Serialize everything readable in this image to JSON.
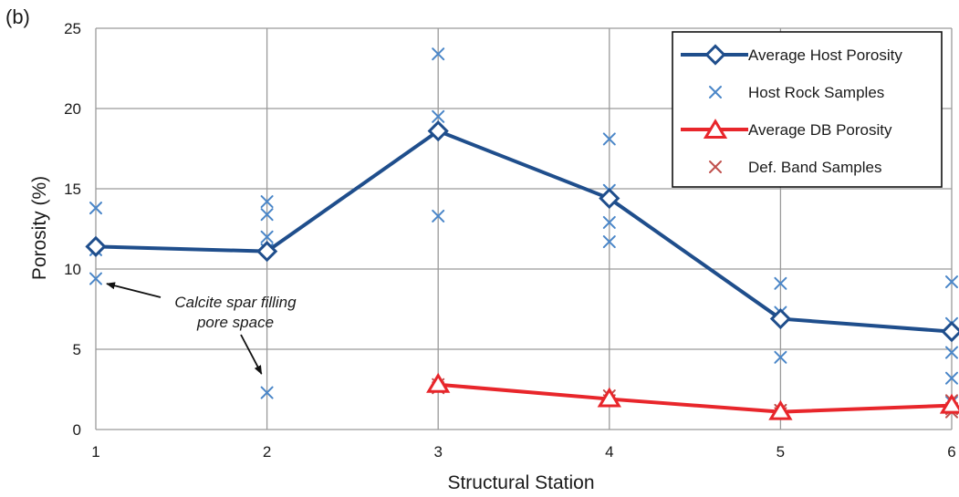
{
  "chart_data": {
    "type": "line",
    "panel_label": "(b)",
    "xlabel": "Structural Station",
    "ylabel": "Porosity (%)",
    "xlim": [
      1,
      6
    ],
    "ylim": [
      0,
      25
    ],
    "x_ticks": [
      1,
      2,
      3,
      4,
      5,
      6
    ],
    "y_ticks": [
      0,
      5,
      10,
      15,
      20,
      25
    ],
    "grid": true,
    "legend_position": "top-right",
    "series": [
      {
        "name": "Average Host Porosity",
        "kind": "line",
        "marker": "diamond",
        "color": "#1f4e8c",
        "x": [
          1,
          2,
          3,
          4,
          5,
          6
        ],
        "y": [
          11.4,
          11.1,
          18.6,
          14.4,
          6.9,
          6.1
        ]
      },
      {
        "name": "Host Rock Samples",
        "kind": "scatter",
        "marker": "x",
        "color": "#4a86c8",
        "points": [
          [
            1,
            13.8
          ],
          [
            1,
            11.2
          ],
          [
            1,
            9.4
          ],
          [
            2,
            14.2
          ],
          [
            2,
            13.4
          ],
          [
            2,
            12.0
          ],
          [
            2,
            11.2
          ],
          [
            2,
            2.3
          ],
          [
            3,
            23.4
          ],
          [
            3,
            19.5
          ],
          [
            3,
            13.3
          ],
          [
            4,
            18.1
          ],
          [
            4,
            14.9
          ],
          [
            4,
            12.9
          ],
          [
            4,
            11.7
          ],
          [
            5,
            9.1
          ],
          [
            5,
            7.3
          ],
          [
            5,
            4.5
          ],
          [
            6,
            9.2
          ],
          [
            6,
            6.6
          ],
          [
            6,
            4.8
          ],
          [
            6,
            3.2
          ],
          [
            6,
            1.7
          ]
        ]
      },
      {
        "name": "Average DB Porosity",
        "kind": "line",
        "marker": "triangle",
        "color": "#e8262b",
        "x": [
          3,
          4,
          5,
          6
        ],
        "y": [
          2.8,
          1.9,
          1.1,
          1.5
        ]
      },
      {
        "name": "Def. Band Samples",
        "kind": "scatter",
        "marker": "x",
        "color": "#c0504d",
        "points": [
          [
            3,
            2.8
          ],
          [
            3,
            2.6
          ],
          [
            4,
            2.1
          ],
          [
            4,
            1.8
          ],
          [
            5,
            1.2
          ],
          [
            5,
            1.0
          ],
          [
            6,
            1.8
          ],
          [
            6,
            1.3
          ],
          [
            6,
            1.1
          ]
        ]
      }
    ],
    "annotation": {
      "lines": [
        "Calcite spar filling",
        "pore space"
      ],
      "targets": [
        [
          1,
          9.2
        ],
        [
          2,
          2.9
        ]
      ]
    }
  }
}
